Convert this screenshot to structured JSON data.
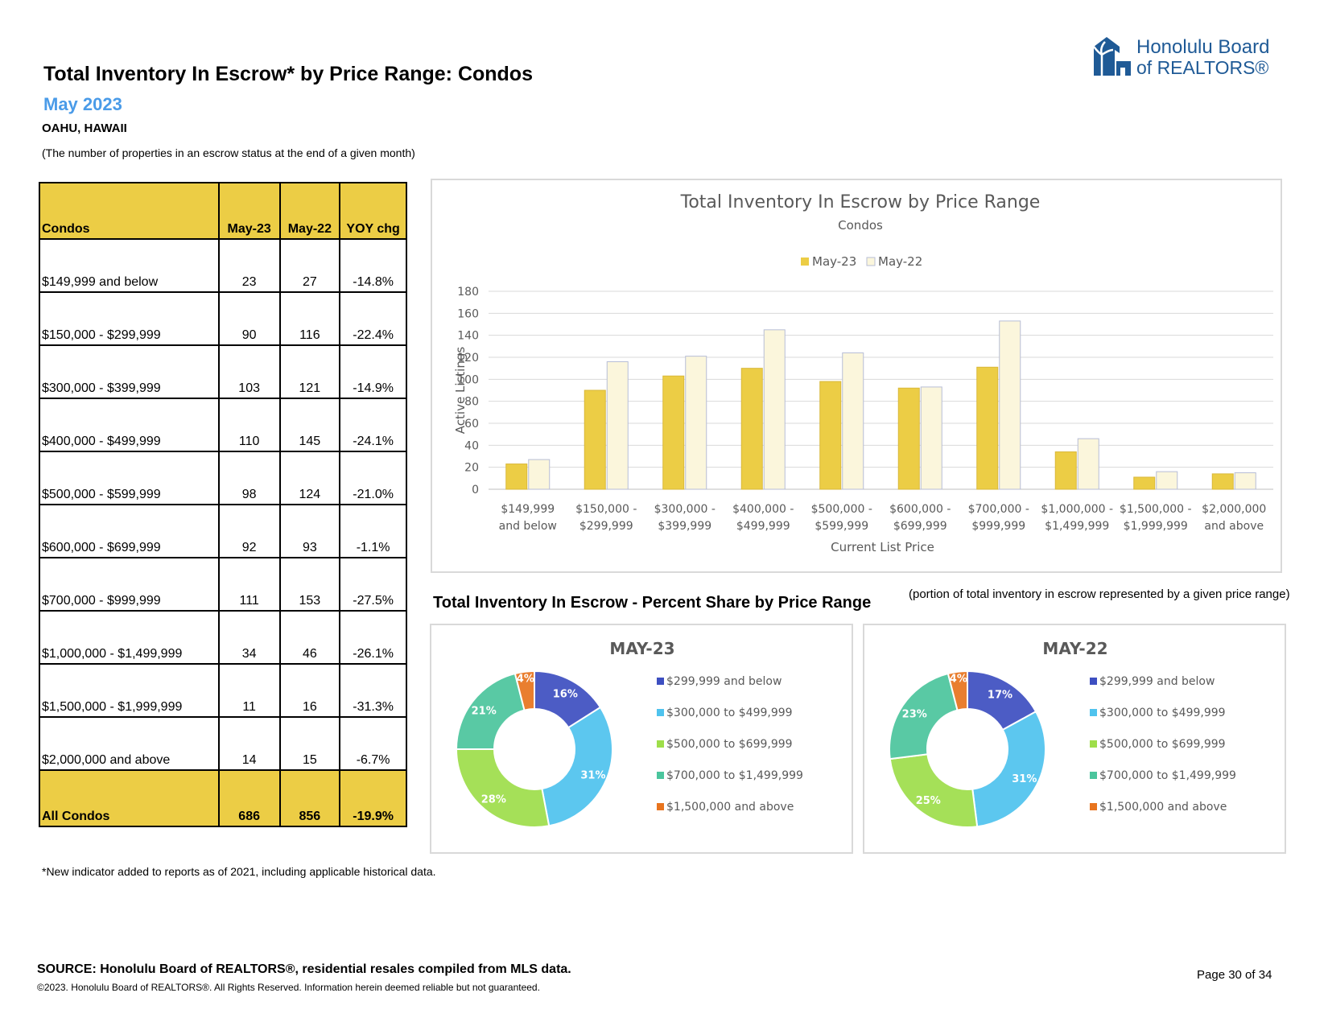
{
  "header": {
    "title": "Total Inventory In Escrow* by Price Range: Condos",
    "subtitle": "May 2023",
    "location": "OAHU, HAWAII",
    "note": "(The number of properties in an escrow status at the end of a given month)"
  },
  "logo": {
    "line1": "Honolulu Board",
    "line2": "of REALTORS®"
  },
  "table": {
    "headers": [
      "Condos",
      "May-23",
      "May-22",
      "YOY chg"
    ],
    "rows": [
      [
        "$149,999 and below",
        "23",
        "27",
        "-14.8%"
      ],
      [
        "$150,000 - $299,999",
        "90",
        "116",
        "-22.4%"
      ],
      [
        "$300,000 - $399,999",
        "103",
        "121",
        "-14.9%"
      ],
      [
        "$400,000 - $499,999",
        "110",
        "145",
        "-24.1%"
      ],
      [
        "$500,000 - $599,999",
        "98",
        "124",
        "-21.0%"
      ],
      [
        "$600,000 - $699,999",
        "92",
        "93",
        "-1.1%"
      ],
      [
        "$700,000 - $999,999",
        "111",
        "153",
        "-27.5%"
      ],
      [
        "$1,000,000 - $1,499,999",
        "34",
        "46",
        "-26.1%"
      ],
      [
        "$1,500,000 - $1,999,999",
        "11",
        "16",
        "-31.3%"
      ],
      [
        "$2,000,000 and above",
        "14",
        "15",
        "-6.7%"
      ]
    ],
    "total": [
      "All Condos",
      "686",
      "856",
      "-19.9%"
    ]
  },
  "footnote": "*New indicator added to reports as of 2021, including applicable historical data.",
  "pie_section": {
    "heading": "Total Inventory In Escrow - Percent Share by Price Range",
    "description": "(portion of total inventory in escrow represented by a given price range)"
  },
  "footer": {
    "source": "SOURCE: Honolulu Board of REALTORS®, residential resales compiled from MLS data.",
    "copyright": "©2023. Honolulu Board of REALTORS®. All Rights Reserved. Information herein deemed reliable but not guaranteed.",
    "page": "Page 30 of 34"
  },
  "colors": {
    "may23": "#eccd45",
    "may22": "#fbf6dc",
    "pie": [
      "#3d4fc1",
      "#4fc3ee",
      "#9ede4a",
      "#4bc59d",
      "#e8741e"
    ]
  },
  "chart_data": [
    {
      "type": "bar",
      "title": "Total Inventory In Escrow by Price Range",
      "subtitle": "Condos",
      "xlabel": "Current List Price",
      "ylabel": "Active Listings",
      "ylim": [
        0,
        180
      ],
      "yticks": [
        0,
        20,
        40,
        60,
        80,
        100,
        120,
        140,
        160,
        180
      ],
      "grid": true,
      "legend": "top-center",
      "categories": [
        [
          "$149,999",
          "and below"
        ],
        [
          "$150,000 -",
          "$299,999"
        ],
        [
          "$300,000 -",
          "$399,999"
        ],
        [
          "$400,000 -",
          "$499,999"
        ],
        [
          "$500,000 -",
          "$599,999"
        ],
        [
          "$600,000 -",
          "$699,999"
        ],
        [
          "$700,000 -",
          "$999,999"
        ],
        [
          "$1,000,000 -",
          "$1,499,999"
        ],
        [
          "$1,500,000 -",
          "$1,999,999"
        ],
        [
          "$2,000,000",
          "and above"
        ]
      ],
      "series": [
        {
          "name": "May-23",
          "values": [
            23,
            90,
            103,
            110,
            98,
            92,
            111,
            34,
            11,
            14
          ]
        },
        {
          "name": "May-22",
          "values": [
            27,
            116,
            121,
            145,
            124,
            93,
            153,
            46,
            16,
            15
          ]
        }
      ]
    },
    {
      "type": "pie",
      "title": "MAY-23",
      "labels": [
        "$299,999 and below",
        "$300,000 to $499,999",
        "$500,000 to $699,999",
        "$700,000 to $1,499,999",
        "$1,500,000 and above"
      ],
      "values": [
        16,
        31,
        28,
        21,
        4
      ],
      "value_labels": [
        "16%",
        "31%",
        "28%",
        "21%",
        "4%"
      ]
    },
    {
      "type": "pie",
      "title": "MAY-22",
      "labels": [
        "$299,999 and below",
        "$300,000 to $499,999",
        "$500,000 to $699,999",
        "$700,000 to $1,499,999",
        "$1,500,000 and above"
      ],
      "values": [
        17,
        31,
        25,
        23,
        4
      ],
      "value_labels": [
        "17%",
        "31%",
        "25%",
        "23%",
        "4%"
      ]
    }
  ]
}
